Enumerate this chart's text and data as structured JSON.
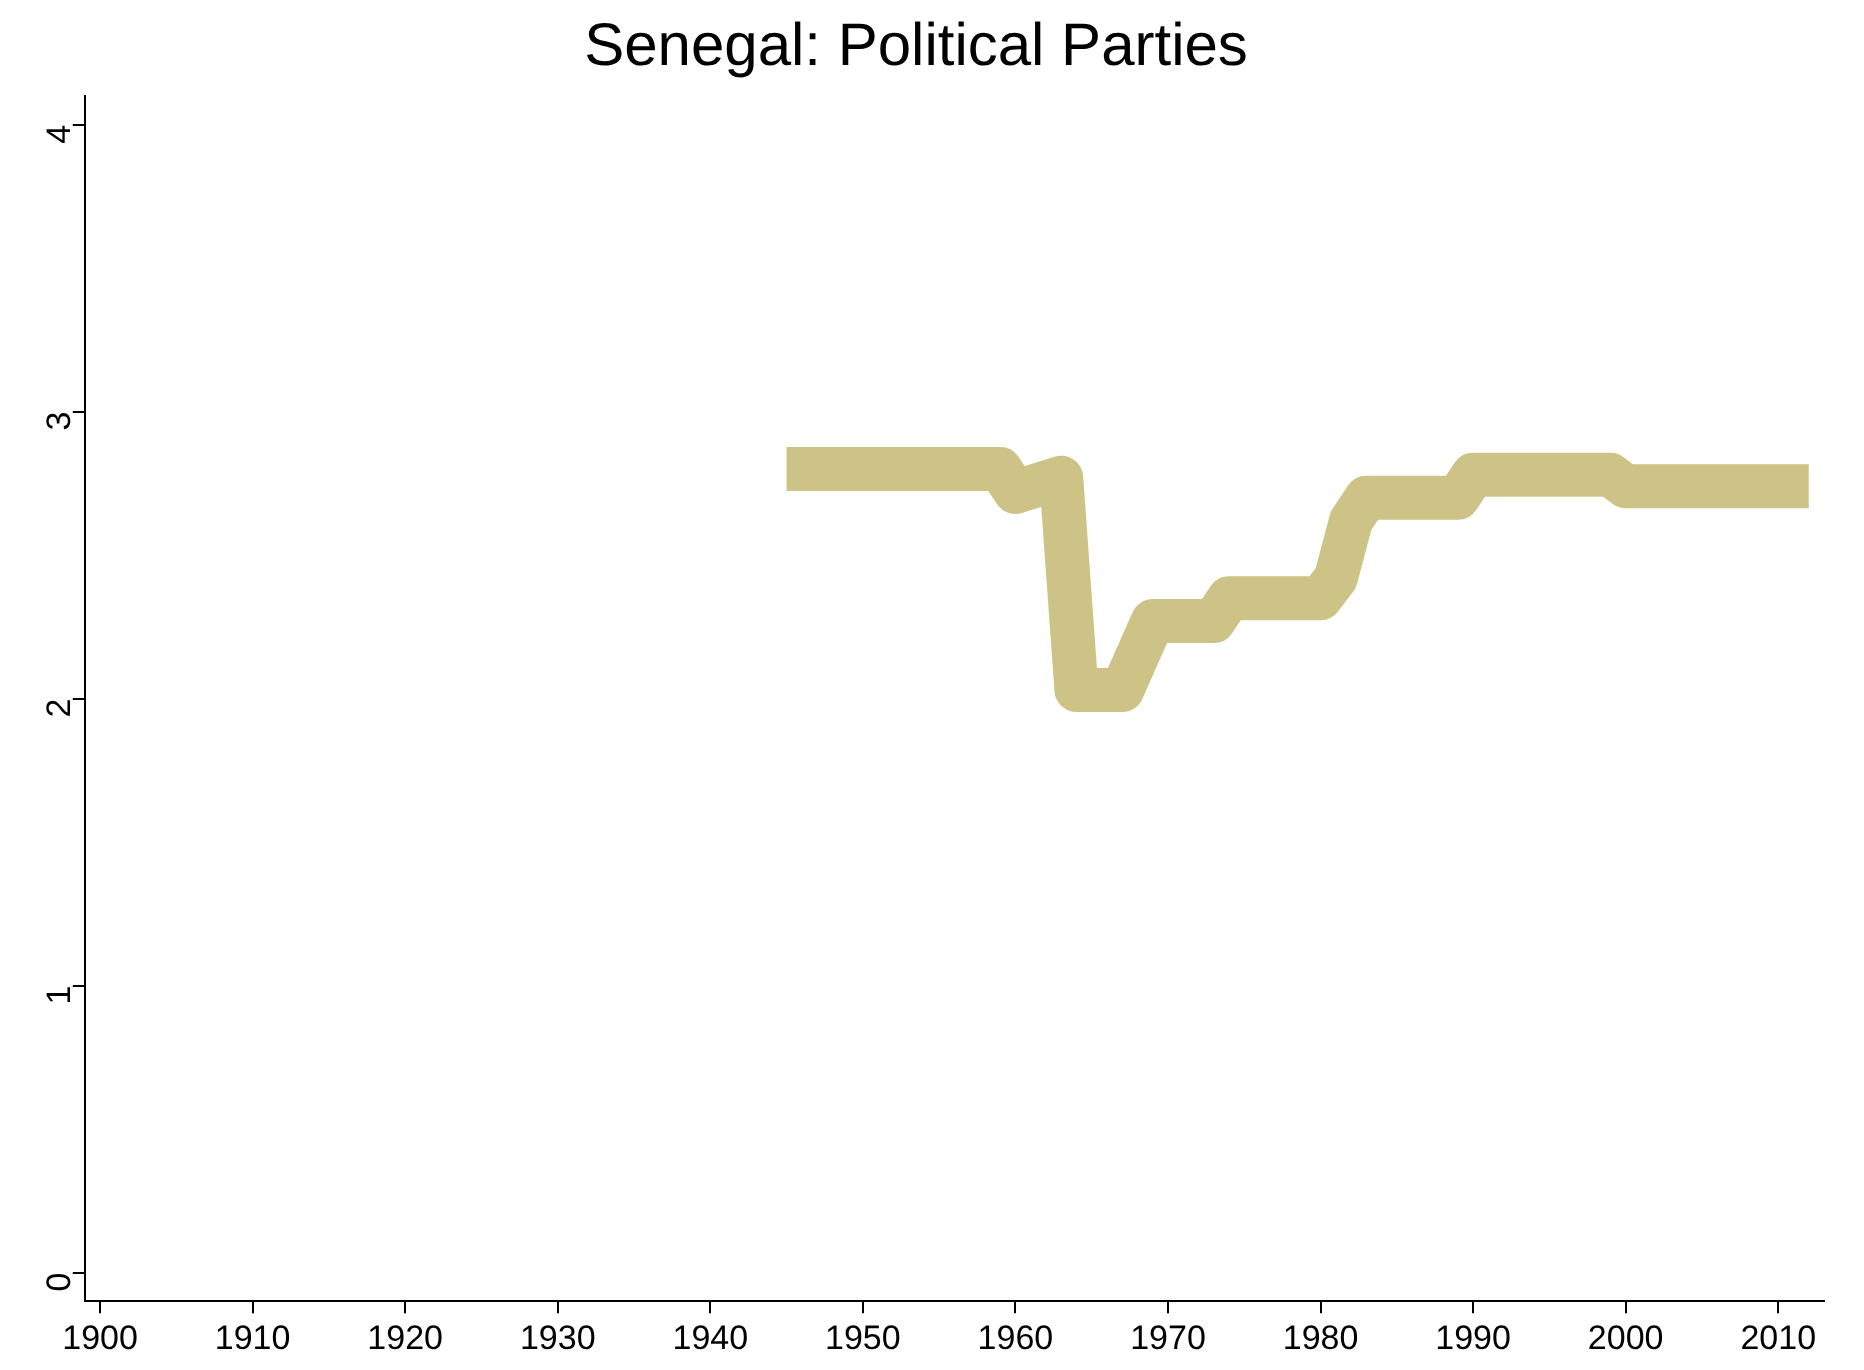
{
  "chart_data": {
    "type": "line",
    "title": "Senegal: Political Parties",
    "x": [
      1945,
      1959,
      1960,
      1963,
      1964,
      1967,
      1969,
      1973,
      1974,
      1980,
      1981,
      1982,
      1983,
      1989,
      1990,
      1999,
      2000,
      2012
    ],
    "series": [
      {
        "color": "#cdc386",
        "values": [
          2.8,
          2.8,
          2.72,
          2.77,
          2.03,
          2.03,
          2.27,
          2.27,
          2.35,
          2.35,
          2.42,
          2.62,
          2.7,
          2.7,
          2.78,
          2.78,
          2.74,
          2.74
        ]
      }
    ],
    "xlim": [
      1899,
      2013
    ],
    "xticks": [
      1900,
      1910,
      1920,
      1930,
      1940,
      1950,
      1960,
      1970,
      1980,
      1990,
      2000,
      2010
    ],
    "ylim": [
      -0.1,
      4.1
    ],
    "yticks": [
      0,
      1,
      2,
      3,
      4
    ],
    "grid": false,
    "legend": false,
    "marker": "none",
    "line_style": "solid"
  }
}
